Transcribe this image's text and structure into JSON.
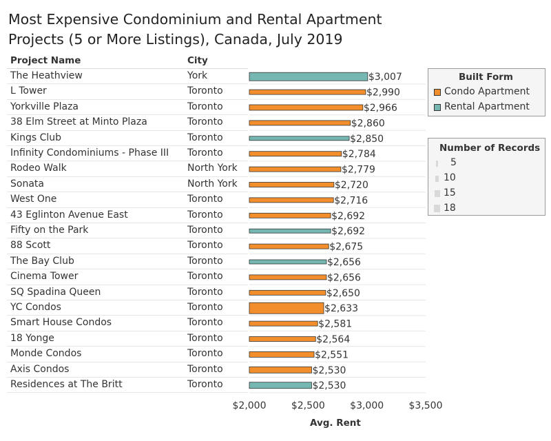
{
  "title_line1": "Most Expensive Condominium and Rental Apartment",
  "title_line2": "Projects (5 or More Listings), Canada, July 2019",
  "columns": {
    "project": "Project Name",
    "city": "City"
  },
  "colors": {
    "condo": "#f28e2b",
    "rental": "#76b7b2",
    "outline": "#333333"
  },
  "legend_built_form": {
    "title": "Built Form",
    "items": [
      {
        "label": "Condo Apartment",
        "color": "#f28e2b"
      },
      {
        "label": "Rental Apartment",
        "color": "#76b7b2"
      }
    ]
  },
  "legend_records": {
    "title": "Number of Records",
    "items": [
      "5",
      "10",
      "15",
      "18"
    ]
  },
  "chart_data": {
    "type": "bar",
    "orientation": "horizontal",
    "xlabel": "Avg. Rent",
    "xlim": [
      2000,
      3500
    ],
    "xticks": [
      2000,
      2500,
      3000,
      3500
    ],
    "xtick_labels": [
      "$2,000",
      "$2,500",
      "$3,000",
      "$3,500"
    ],
    "categories": [
      "The Heathview",
      "L Tower",
      "Yorkville Plaza",
      "38 Elm Street at Minto Plaza",
      "Kings Club",
      "Infinity Condominiums - Phase III",
      "Rodeo Walk",
      "Sonata",
      "West One",
      "43 Eglinton Avenue East",
      "Fifty on the Park",
      "88 Scott",
      "The Bay Club",
      "Cinema Tower",
      "SQ Spadina Queen",
      "YC Condos",
      "Smart House Condos",
      "18 Yonge",
      "Monde Condos",
      "Axis Condos",
      "Residences at The Britt"
    ],
    "cities": [
      "York",
      "Toronto",
      "Toronto",
      "Toronto",
      "Toronto",
      "Toronto",
      "North York",
      "North York",
      "Toronto",
      "Toronto",
      "Toronto",
      "Toronto",
      "Toronto",
      "Toronto",
      "Toronto",
      "Toronto",
      "Toronto",
      "Toronto",
      "Toronto",
      "Toronto",
      "Toronto"
    ],
    "values": [
      3007,
      2990,
      2966,
      2860,
      2850,
      2784,
      2779,
      2720,
      2716,
      2692,
      2692,
      2675,
      2656,
      2656,
      2650,
      2633,
      2581,
      2564,
      2551,
      2530,
      2530
    ],
    "value_labels": [
      "$3,007",
      "$2,990",
      "$2,966",
      "$2,860",
      "$2,850",
      "$2,784",
      "$2,779",
      "$2,720",
      "$2,716",
      "$2,692",
      "$2,692",
      "$2,675",
      "$2,656",
      "$2,656",
      "$2,650",
      "$2,633",
      "$2,581",
      "$2,564",
      "$2,551",
      "$2,530",
      "$2,530"
    ],
    "built_form": [
      "Rental Apartment",
      "Condo Apartment",
      "Condo Apartment",
      "Condo Apartment",
      "Rental Apartment",
      "Condo Apartment",
      "Condo Apartment",
      "Condo Apartment",
      "Condo Apartment",
      "Condo Apartment",
      "Rental Apartment",
      "Condo Apartment",
      "Rental Apartment",
      "Condo Apartment",
      "Condo Apartment",
      "Condo Apartment",
      "Condo Apartment",
      "Condo Apartment",
      "Condo Apartment",
      "Condo Apartment",
      "Rental Apartment"
    ],
    "number_of_records": [
      13,
      7,
      8,
      6,
      5,
      6,
      7,
      6,
      7,
      6,
      5,
      7,
      5,
      6,
      6,
      18,
      7,
      7,
      8,
      9,
      9
    ]
  }
}
